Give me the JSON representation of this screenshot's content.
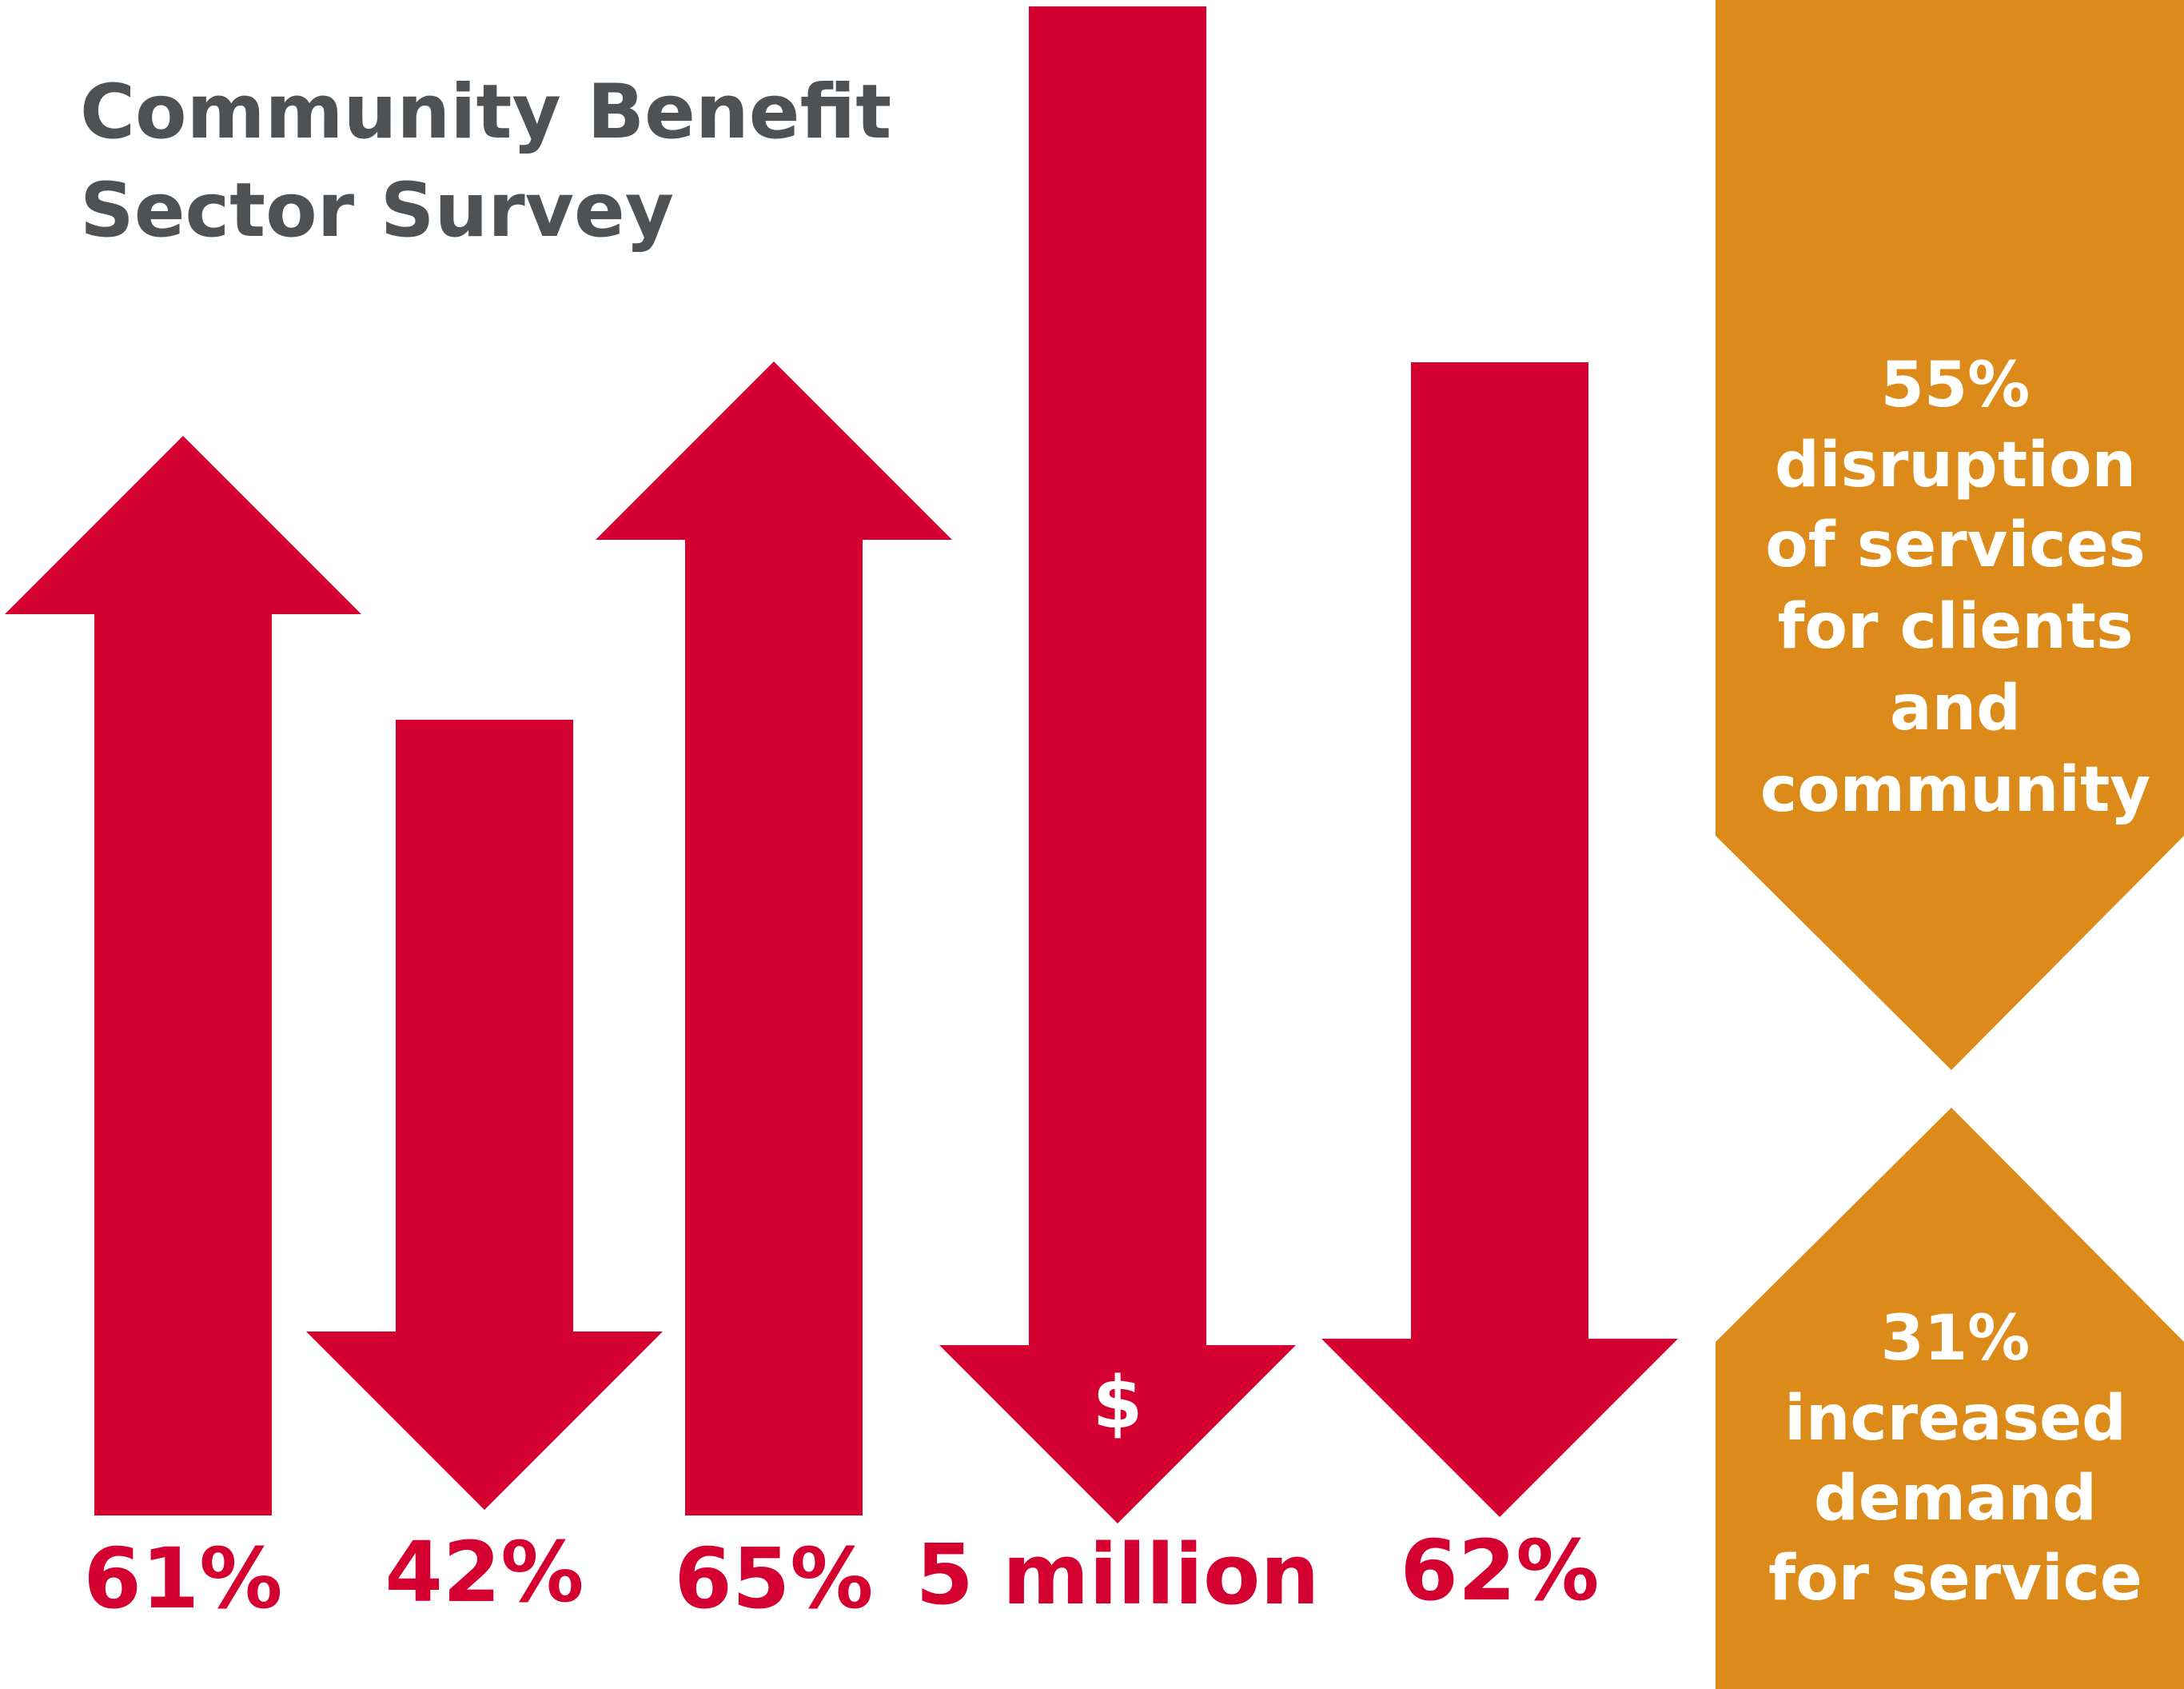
{
  "title": [
    "Community Benefit",
    "Sector Survey"
  ],
  "colors": {
    "arrow": "#d40030",
    "card": "#dc8b1a",
    "title": "#4f5254",
    "card_text": "#ffffff"
  },
  "chart_data": {
    "type": "bar",
    "title": "Community Benefit Sector Survey",
    "items": [
      {
        "label": "61%",
        "direction": "up"
      },
      {
        "label": "42%",
        "direction": "down"
      },
      {
        "label": "65%",
        "direction": "up"
      },
      {
        "label": "5 million",
        "direction": "down",
        "icon": "$"
      },
      {
        "label": "62%",
        "direction": "down"
      }
    ]
  },
  "cards": [
    {
      "icon": "chevron-down-icon",
      "lines": [
        "55%",
        "disruption",
        "of services",
        "for clients",
        "and",
        "community"
      ]
    },
    {
      "icon": "chevron-up-icon",
      "lines": [
        "31%",
        "increased",
        "demand",
        "for service"
      ]
    }
  ]
}
